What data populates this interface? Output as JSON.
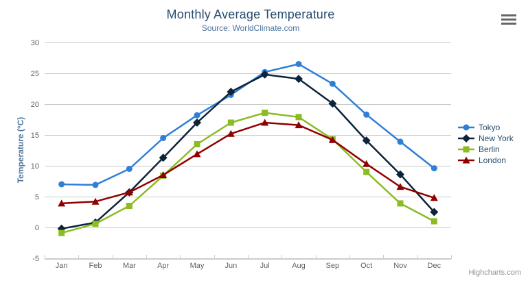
{
  "chart_data": {
    "type": "line",
    "title": "Monthly Average Temperature",
    "subtitle": "Source: WorldClimate.com",
    "xlabel": "",
    "ylabel": "Temperature (°C)",
    "categories": [
      "Jan",
      "Feb",
      "Mar",
      "Apr",
      "May",
      "Jun",
      "Jul",
      "Aug",
      "Sep",
      "Oct",
      "Nov",
      "Dec"
    ],
    "ylim": [
      -5,
      30
    ],
    "yticks": [
      -5,
      0,
      5,
      10,
      15,
      20,
      25,
      30
    ],
    "grid": true,
    "legend_position": "right",
    "series": [
      {
        "name": "Tokyo",
        "color": "#2f7ed8",
        "marker": "circle",
        "values": [
          7.0,
          6.9,
          9.5,
          14.5,
          18.2,
          21.5,
          25.2,
          26.5,
          23.3,
          18.3,
          13.9,
          9.6
        ]
      },
      {
        "name": "New York",
        "color": "#0d233a",
        "marker": "diamond",
        "values": [
          -0.2,
          0.8,
          5.7,
          11.3,
          17.0,
          22.0,
          24.8,
          24.1,
          20.1,
          14.1,
          8.6,
          2.5
        ]
      },
      {
        "name": "Berlin",
        "color": "#8bbc21",
        "marker": "square",
        "values": [
          -0.9,
          0.6,
          3.5,
          8.4,
          13.5,
          17.0,
          18.6,
          17.9,
          14.3,
          9.0,
          3.9,
          1.0
        ]
      },
      {
        "name": "London",
        "color": "#910000",
        "marker": "triangle",
        "values": [
          3.9,
          4.2,
          5.7,
          8.5,
          11.9,
          15.2,
          17.0,
          16.6,
          14.2,
          10.3,
          6.6,
          4.8
        ]
      }
    ]
  },
  "credits": {
    "label": "Highcharts.com"
  },
  "icons": {
    "context_menu": "hamburger-icon"
  },
  "colors": {
    "title": "#274b6d",
    "subtitle": "#4d759e",
    "axis_title": "#4d759e",
    "axis_label": "#606060",
    "grid": "#c9c9c9",
    "axis_line": "#c0d0e0",
    "legend_text": "#274b6d",
    "credits": "#909090",
    "burger": "#666666"
  }
}
